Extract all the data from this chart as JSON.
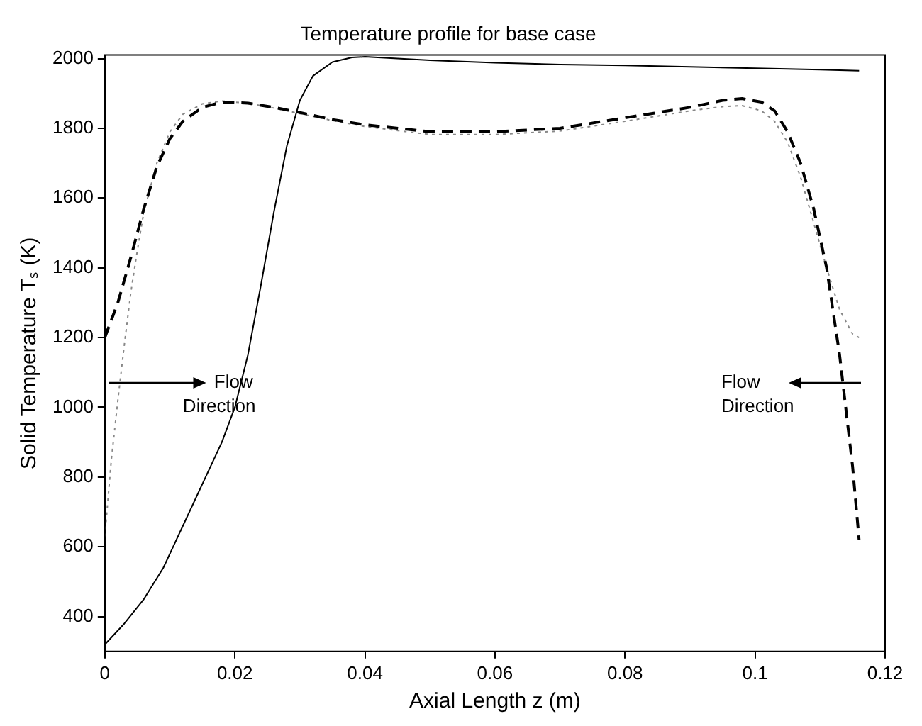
{
  "chart_data": {
    "type": "line",
    "title": "Temperature profile for base case",
    "xlabel": "Axial Length z (m)",
    "ylabel": "Solid Temperature Tₛ (K)",
    "xlim": [
      0,
      0.12
    ],
    "xticks": [
      0,
      0.02,
      0.04,
      0.06,
      0.08,
      0.1,
      0.12
    ],
    "ylim": [
      300,
      2010
    ],
    "yticks": [
      400,
      600,
      800,
      1000,
      1200,
      1400,
      1600,
      1800,
      2000
    ],
    "grid": false,
    "legend": false,
    "marker": "none",
    "annotations": [
      "Flow Direction",
      "Flow Direction"
    ],
    "series": [
      {
        "color": "#000000",
        "line_style": "solid",
        "x": [
          0,
          0.003,
          0.006,
          0.009,
          0.012,
          0.015,
          0.018,
          0.02,
          0.022,
          0.024,
          0.026,
          0.028,
          0.03,
          0.032,
          0.035,
          0.038,
          0.04,
          0.05,
          0.06,
          0.07,
          0.08,
          0.09,
          0.1,
          0.11,
          0.116
        ],
        "values": [
          320,
          380,
          450,
          540,
          660,
          780,
          900,
          1000,
          1150,
          1350,
          1560,
          1750,
          1880,
          1950,
          1990,
          2003,
          2005,
          1995,
          1988,
          1983,
          1980,
          1976,
          1972,
          1968,
          1965
        ]
      },
      {
        "color": "#000000",
        "line_style": "dashed",
        "x": [
          0,
          0.002,
          0.004,
          0.006,
          0.008,
          0.01,
          0.012,
          0.015,
          0.018,
          0.022,
          0.026,
          0.03,
          0.035,
          0.04,
          0.05,
          0.06,
          0.07,
          0.08,
          0.09,
          0.095,
          0.098,
          0.101,
          0.103,
          0.105,
          0.107,
          0.109,
          0.111,
          0.113,
          0.115,
          0.116
        ],
        "values": [
          1200,
          1300,
          1430,
          1570,
          1690,
          1770,
          1820,
          1860,
          1875,
          1872,
          1860,
          1845,
          1825,
          1810,
          1790,
          1790,
          1800,
          1830,
          1860,
          1880,
          1885,
          1875,
          1850,
          1790,
          1700,
          1570,
          1400,
          1150,
          830,
          620
        ]
      },
      {
        "color": "#888888",
        "line_style": "dotted",
        "x": [
          0,
          0.001,
          0.002,
          0.003,
          0.004,
          0.005,
          0.006,
          0.008,
          0.01,
          0.012,
          0.015,
          0.018,
          0.022,
          0.026,
          0.03,
          0.035,
          0.04,
          0.05,
          0.06,
          0.07,
          0.08,
          0.09,
          0.095,
          0.098,
          0.101,
          0.103,
          0.105,
          0.107,
          0.109,
          0.111,
          0.113,
          0.115,
          0.116
        ],
        "values": [
          630,
          850,
          1020,
          1180,
          1330,
          1450,
          1560,
          1700,
          1790,
          1840,
          1870,
          1878,
          1872,
          1858,
          1842,
          1822,
          1805,
          1782,
          1782,
          1792,
          1820,
          1850,
          1862,
          1865,
          1850,
          1820,
          1760,
          1660,
          1530,
          1400,
          1280,
          1210,
          1200
        ]
      }
    ]
  }
}
